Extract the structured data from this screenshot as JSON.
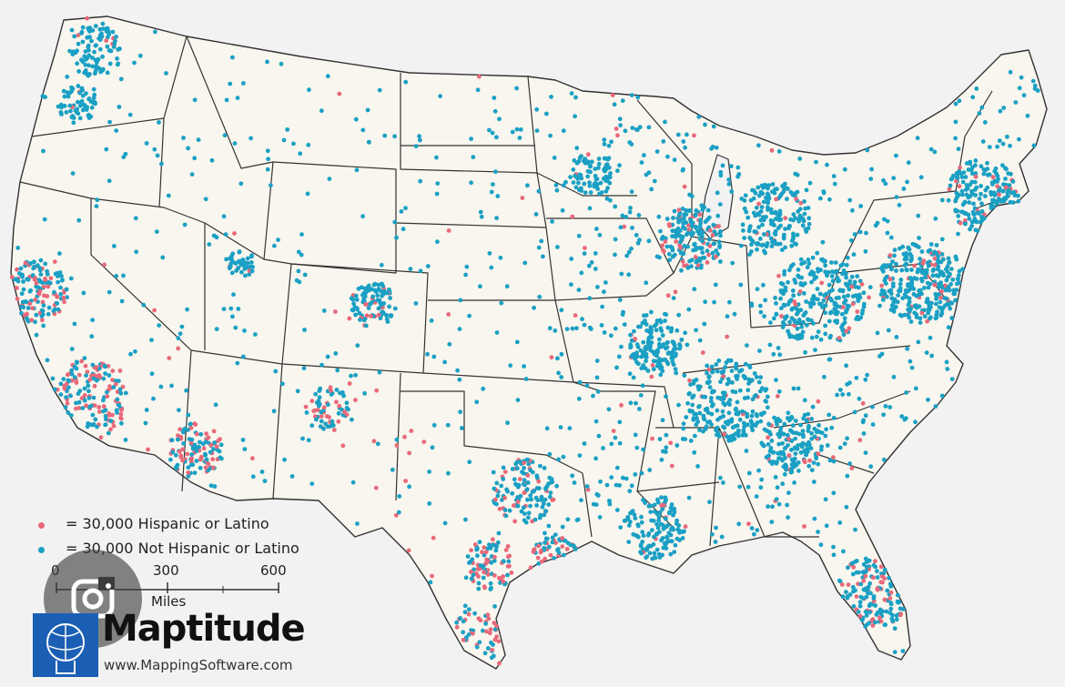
{
  "legend": {
    "items": [
      {
        "label": "= 30,000 Hispanic or Latino",
        "color": "#e8697a"
      },
      {
        "label": "= 30,000 Not Hispanic or Latino",
        "color": "#1aa0c4"
      }
    ]
  },
  "scale": {
    "ticks": [
      "0",
      "300",
      "600"
    ],
    "unit": "Miles"
  },
  "brand": {
    "name": "Maptitude",
    "url": "www.MappingSoftware.com"
  },
  "colors": {
    "hispanic": "#e8697a",
    "not_hispanic": "#1aa0c4",
    "land": "#f8f6ee",
    "border": "#333333",
    "logo": "#1a5fb4"
  },
  "icons": {
    "lens": "google-lens-icon",
    "logo": "maptitude-globe-head-icon"
  }
}
